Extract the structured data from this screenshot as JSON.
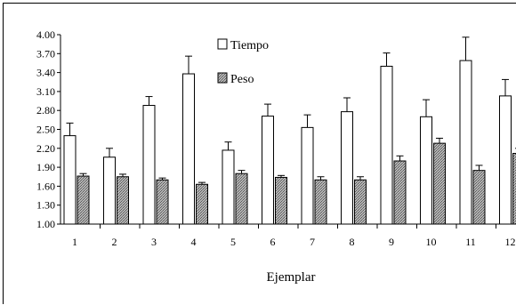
{
  "chart_data": {
    "type": "bar",
    "xlabel": "Ejemplar",
    "ylabel": "",
    "categories": [
      "1",
      "2",
      "3",
      "4",
      "5",
      "6",
      "7",
      "8",
      "9",
      "10",
      "11",
      "12"
    ],
    "ylim": [
      1.0,
      4.0
    ],
    "yticks": [
      "1.00",
      "1.30",
      "1.60",
      "1.90",
      "2.20",
      "2.50",
      "2.80",
      "3.10",
      "3.40",
      "3.70",
      "4.00"
    ],
    "legend_position": "top-center",
    "series": [
      {
        "name": "Tiempo",
        "fill": "#ffffff",
        "values": [
          2.4,
          2.06,
          2.88,
          3.38,
          2.17,
          2.71,
          2.53,
          2.78,
          3.5,
          2.7,
          3.59,
          3.03
        ],
        "errors": [
          0.2,
          0.14,
          0.14,
          0.28,
          0.13,
          0.19,
          0.2,
          0.22,
          0.21,
          0.27,
          0.37,
          0.26
        ]
      },
      {
        "name": "Peso",
        "fill": "#9a9a9a",
        "values": [
          1.76,
          1.75,
          1.7,
          1.63,
          1.8,
          1.74,
          1.7,
          1.7,
          2.0,
          2.28,
          1.85,
          2.12
        ],
        "errors": [
          0.04,
          0.04,
          0.03,
          0.03,
          0.05,
          0.03,
          0.05,
          0.05,
          0.08,
          0.08,
          0.08,
          0.08
        ]
      }
    ]
  }
}
